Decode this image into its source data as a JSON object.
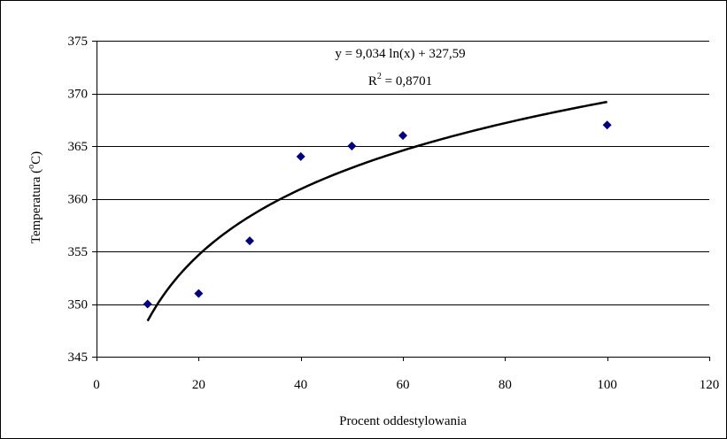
{
  "chart_data": {
    "type": "scatter",
    "xlabel": "Procent oddestylowania",
    "ylabel": {
      "prefix": "Temperatura (",
      "sup": "o",
      "suffix": "C)"
    },
    "xlim": [
      0,
      120
    ],
    "ylim": [
      345,
      375
    ],
    "xticks": [
      "0",
      "20",
      "40",
      "60",
      "80",
      "100",
      "120"
    ],
    "yticks": [
      "345",
      "350",
      "355",
      "360",
      "365",
      "370",
      "375"
    ],
    "grid": "horizontal",
    "legend": "none",
    "points": [
      {
        "x": 10,
        "y": 350
      },
      {
        "x": 20,
        "y": 351
      },
      {
        "x": 30,
        "y": 356
      },
      {
        "x": 40,
        "y": 364
      },
      {
        "x": 50,
        "y": 365
      },
      {
        "x": 60,
        "y": 366
      },
      {
        "x": 100,
        "y": 367
      }
    ],
    "trendline": {
      "type": "logarithmic",
      "a": 9.034,
      "b": 327.59,
      "x_range": [
        10,
        100
      ],
      "equation": "y = 9,034 ln(x) + 327,59",
      "r2_label": "R",
      "r2_sup": "2",
      "r2_value": " = 0,8701"
    },
    "colors": {
      "marker": "#000080",
      "trendline": "#000000",
      "gridline": "#000000"
    }
  }
}
